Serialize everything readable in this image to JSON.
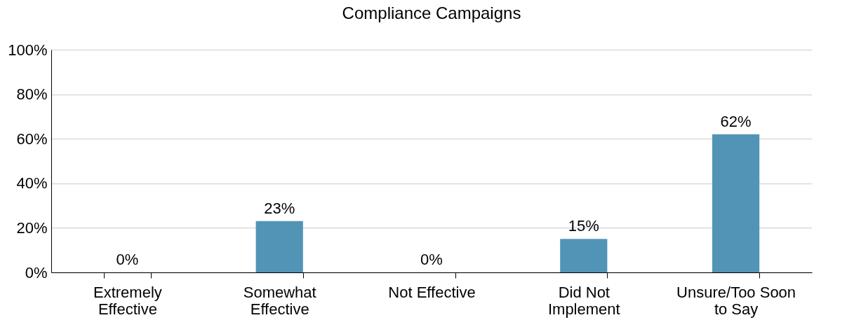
{
  "chart_data": {
    "type": "bar",
    "title": "Compliance Campaigns",
    "categories": [
      "Extremely Effective",
      "Somewhat Effective",
      "Not Effective",
      "Did Not Implement",
      "Unsure/Too Soon to Say"
    ],
    "values": [
      0,
      23,
      0,
      15,
      62
    ],
    "value_labels": [
      "0%",
      "23%",
      "0%",
      "15%",
      "62%"
    ],
    "color": "#5294b6",
    "ylim": [
      0,
      100
    ],
    "yticks": [
      {
        "value": 0,
        "label": "0%"
      },
      {
        "value": 20,
        "label": "20%"
      },
      {
        "value": 40,
        "label": "40%"
      },
      {
        "value": 60,
        "label": "60%"
      },
      {
        "value": 80,
        "label": "80%"
      },
      {
        "value": 100,
        "label": "100%"
      }
    ],
    "grid": true
  }
}
